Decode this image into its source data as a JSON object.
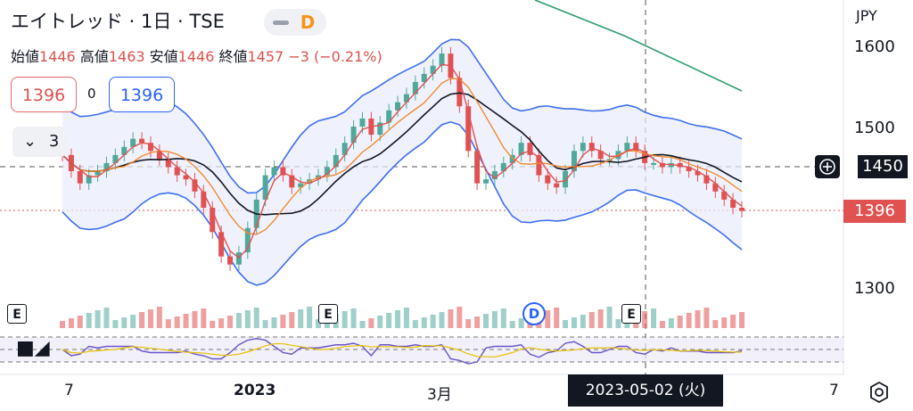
{
  "header": {
    "title": "エイトレッド · 1日 · TSE",
    "interval_badge": "D"
  },
  "ohlc": {
    "open_label": "始値",
    "open": "1446",
    "high_label": "高値",
    "high": "1463",
    "low_label": "安値",
    "low": "1446",
    "close_label": "終値",
    "close": "1457",
    "change": "−3 (−0.21%)"
  },
  "order": {
    "sell": "1396",
    "spread": "0",
    "buy": "1396"
  },
  "indicators_toggle": {
    "count": "3"
  },
  "currency": "JPY",
  "crosshair": {
    "price": "1450",
    "date": "2023-05-02 (火)"
  },
  "last_price_label": "1396",
  "colors": {
    "up": "#4fa89a",
    "down": "#e05252",
    "bb_band": "#3d6ef0",
    "ma_fast": "#e05252",
    "ma_mid": "#f28a2e",
    "ma_slow": "#131722",
    "ma_long": "#2e9e6e",
    "rsi": "#6a55c9",
    "rsi_ma": "#e6c200"
  },
  "chart_data": {
    "type": "candlestick",
    "y_axis": {
      "ticks": [
        1600,
        1500,
        1300
      ],
      "range": [
        1255,
        1660
      ]
    },
    "x_axis": {
      "ticks": [
        "7",
        "2023",
        "3月",
        "7"
      ]
    },
    "close": [
      1465,
      1445,
      1430,
      1440,
      1445,
      1455,
      1465,
      1475,
      1485,
      1480,
      1470,
      1460,
      1450,
      1440,
      1435,
      1420,
      1400,
      1370,
      1340,
      1330,
      1345,
      1375,
      1410,
      1440,
      1450,
      1440,
      1425,
      1430,
      1435,
      1440,
      1450,
      1465,
      1480,
      1500,
      1510,
      1490,
      1505,
      1520,
      1530,
      1540,
      1555,
      1565,
      1575,
      1590,
      1560,
      1525,
      1470,
      1430,
      1435,
      1445,
      1455,
      1465,
      1480,
      1465,
      1440,
      1430,
      1425,
      1445,
      1470,
      1480,
      1470,
      1460,
      1460,
      1470,
      1480,
      1470,
      1455,
      1455,
      1450,
      1455,
      1450,
      1445,
      1440,
      1430,
      1420,
      1410,
      1400,
      1396
    ],
    "events": [
      "E",
      "E",
      "D",
      "E"
    ]
  }
}
